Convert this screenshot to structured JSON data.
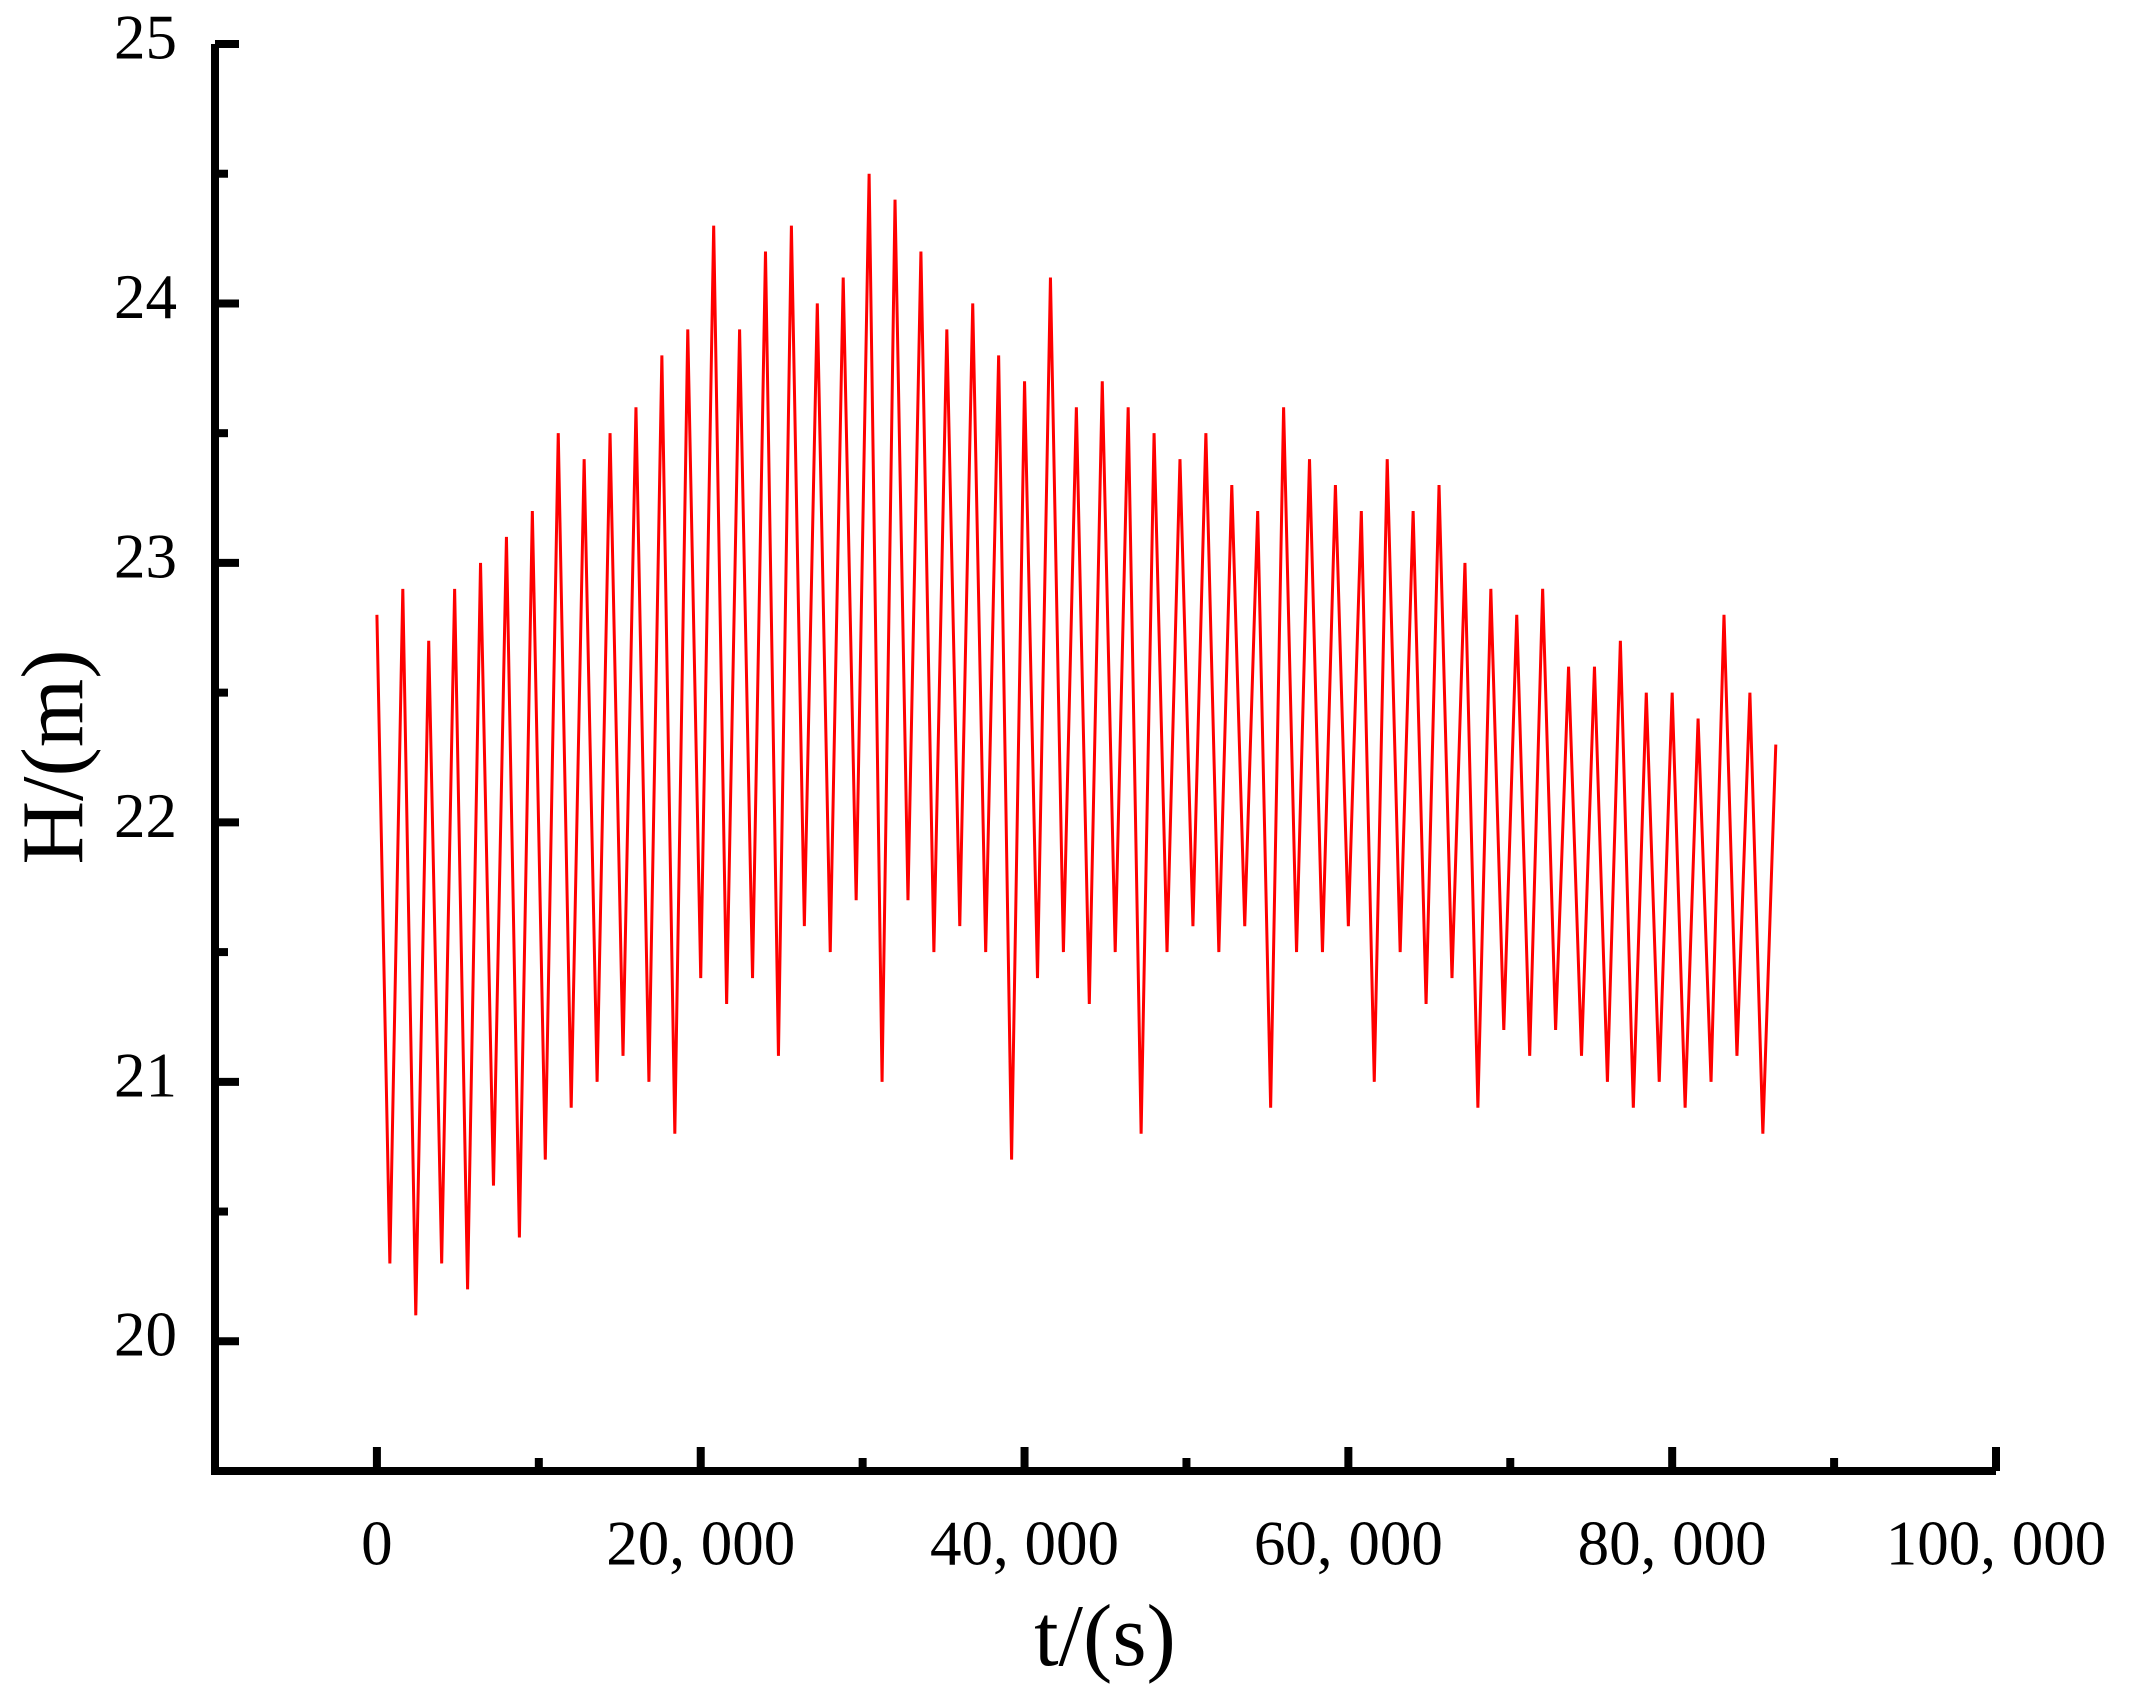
{
  "chart_data": {
    "type": "line",
    "xlabel": "t/(s)",
    "ylabel": "H/(m)",
    "xlim": [
      -10000,
      100000
    ],
    "ylim": [
      19.5,
      25
    ],
    "xticks": [
      0,
      {
        "value": 20000,
        "label": "20, 000"
      },
      {
        "value": 40000,
        "label": "40, 000"
      },
      {
        "value": 60000,
        "label": "60, 000"
      },
      {
        "value": 80000,
        "label": "80, 000"
      },
      {
        "value": 100000,
        "label": "100, 000"
      }
    ],
    "xminorticks": [
      10000,
      30000,
      50000,
      70000,
      90000
    ],
    "yticks": [
      20,
      21,
      22,
      23,
      24,
      25
    ],
    "yminorticks": [
      20.5,
      21.5,
      22.5,
      23.5,
      24.5
    ],
    "grid": false,
    "x": [
      0,
      800,
      1600,
      2400,
      3200,
      4000,
      4800,
      5600,
      6400,
      7200,
      8000,
      8800,
      9600,
      10400,
      11200,
      12000,
      12800,
      13600,
      14400,
      15200,
      16000,
      16800,
      17600,
      18400,
      19200,
      20000,
      20800,
      21600,
      22400,
      23200,
      24000,
      24800,
      25600,
      26400,
      27200,
      28000,
      28800,
      29600,
      30400,
      31200,
      32000,
      32800,
      33600,
      34400,
      35200,
      36000,
      36800,
      37600,
      38400,
      39200,
      40000,
      40800,
      41600,
      42400,
      43200,
      44000,
      44800,
      45600,
      46400,
      47200,
      48000,
      48800,
      49600,
      50400,
      51200,
      52000,
      52800,
      53600,
      54400,
      55200,
      56000,
      56800,
      57600,
      58400,
      59200,
      60000,
      60800,
      61600,
      62400,
      63200,
      64000,
      64800,
      65600,
      66400,
      67200,
      68000,
      68800,
      69600,
      70400,
      71200,
      72000,
      72800,
      73600,
      74400,
      75200,
      76000,
      76800,
      77600,
      78400,
      79200,
      80000,
      80800,
      81600,
      82400,
      83200,
      84000,
      84800,
      85600,
      86400
    ],
    "series": [
      {
        "color": "#ff0000",
        "values": [
          22.8,
          20.3,
          22.9,
          20.1,
          22.7,
          20.3,
          22.9,
          20.2,
          23.0,
          20.6,
          23.1,
          20.4,
          23.2,
          20.7,
          23.5,
          20.9,
          23.4,
          21.0,
          23.5,
          21.1,
          23.6,
          21.0,
          23.8,
          20.8,
          23.9,
          21.4,
          24.3,
          21.3,
          23.9,
          21.4,
          24.2,
          21.1,
          24.3,
          21.6,
          24.0,
          21.5,
          24.1,
          21.7,
          24.5,
          21.0,
          24.4,
          21.7,
          24.2,
          21.5,
          23.9,
          21.6,
          24.0,
          21.5,
          23.8,
          20.7,
          23.7,
          21.4,
          24.1,
          21.5,
          23.6,
          21.3,
          23.7,
          21.5,
          23.6,
          20.8,
          23.5,
          21.5,
          23.4,
          21.6,
          23.5,
          21.5,
          23.3,
          21.6,
          23.2,
          20.9,
          23.6,
          21.5,
          23.4,
          21.5,
          23.3,
          21.6,
          23.2,
          21.0,
          23.4,
          21.5,
          23.2,
          21.3,
          23.3,
          21.4,
          23.0,
          20.9,
          22.9,
          21.2,
          22.8,
          21.1,
          22.9,
          21.2,
          22.6,
          21.1,
          22.6,
          21.0,
          22.7,
          20.9,
          22.5,
          21.0,
          22.5,
          20.9,
          22.4,
          21.0,
          22.8,
          21.1,
          22.5,
          20.8,
          22.3
        ]
      }
    ]
  }
}
